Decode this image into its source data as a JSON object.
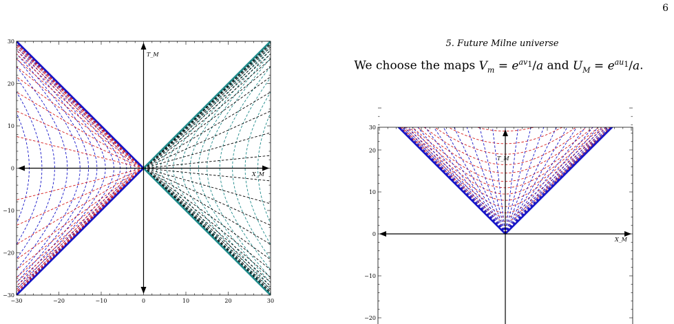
{
  "page": {
    "number": "6"
  },
  "section": {
    "heading": "5.   Future Milne universe"
  },
  "paragraph": {
    "lead": "We choose the maps ",
    "conj": " and ",
    "tail": "."
  },
  "figure_left": {
    "y_tick_labels": [
      "30",
      "20",
      "10",
      "0",
      "−10",
      "−20",
      "−30"
    ],
    "x_tick_labels": [
      "−30",
      "−20",
      "−10",
      "0",
      "10",
      "20",
      "30"
    ],
    "axis_label_t": "T_M",
    "axis_label_x": "X_M"
  },
  "figure_right": {
    "y_tick_labels": [
      "30",
      "20",
      "10",
      "0",
      "−10",
      "−20"
    ],
    "axis_label_t": "T_M",
    "axis_label_x": "X_M"
  },
  "colors": {
    "blue": "#1515c8",
    "red": "#d41a1a",
    "teal": "#1f8a8a",
    "black": "#000000"
  }
}
